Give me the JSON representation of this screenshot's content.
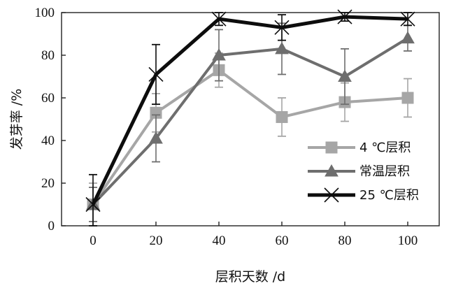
{
  "chart_data": {
    "type": "line",
    "title": "",
    "xlabel": "层积天数 /d",
    "ylabel": "发芽率 /%",
    "x": [
      0,
      20,
      40,
      60,
      80,
      100
    ],
    "xlim": [
      -10,
      110
    ],
    "ylim": [
      0,
      100
    ],
    "xticks": [
      0,
      20,
      40,
      60,
      80,
      100
    ],
    "yticks": [
      0,
      20,
      40,
      60,
      80,
      100
    ],
    "xtick_labels": [
      "0",
      "20",
      "40",
      "60",
      "80",
      "100"
    ],
    "ytick_labels": [
      "0",
      "20",
      "40",
      "60",
      "80",
      "100"
    ],
    "grid": false,
    "legend_position": "bottom-right",
    "series": [
      {
        "name": "4 ℃层积",
        "marker": "square",
        "color": "#a6a6a6",
        "values": [
          10,
          53,
          73,
          51,
          58,
          60
        ],
        "error": [
          10,
          9,
          8,
          9,
          9,
          9
        ]
      },
      {
        "name": "常温层积",
        "marker": "triangle",
        "color": "#6e6e6e",
        "values": [
          10,
          41,
          80,
          83,
          70,
          88
        ],
        "error": [
          8,
          11,
          12,
          12,
          13,
          6
        ]
      },
      {
        "name": "25 ℃层积",
        "marker": "x",
        "color": "#0d0d0d",
        "values": [
          10,
          71,
          97,
          93,
          98,
          97
        ],
        "error": [
          14,
          14,
          3,
          6,
          2,
          3
        ]
      }
    ]
  }
}
